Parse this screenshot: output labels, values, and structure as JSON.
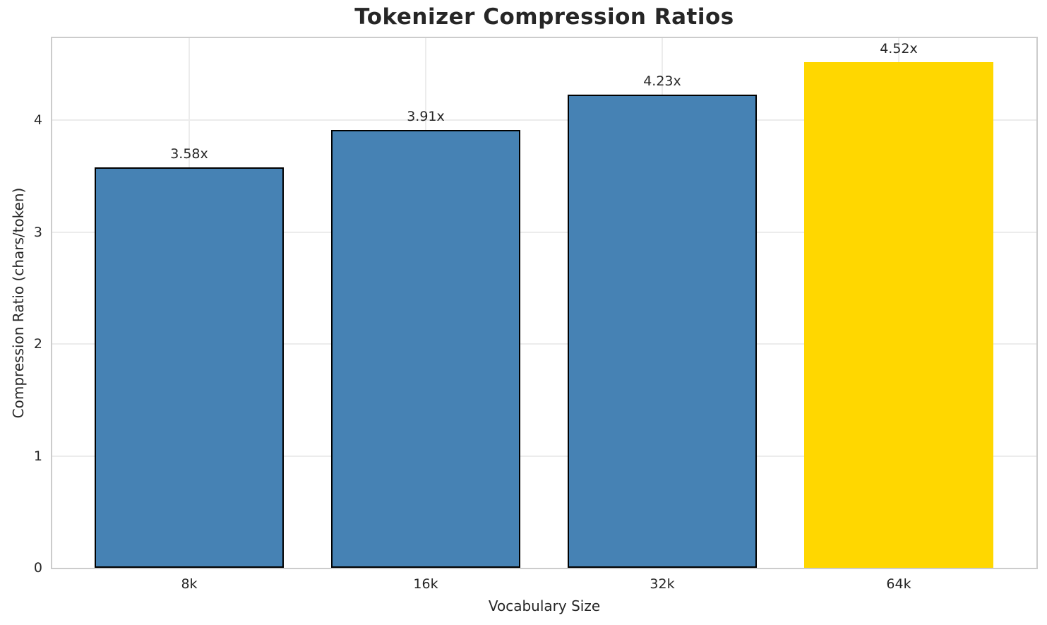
{
  "chart_data": {
    "type": "bar",
    "title": "Tokenizer Compression Ratios",
    "xlabel": "Vocabulary Size",
    "ylabel": "Compression Ratio (chars/token)",
    "categories": [
      "8k",
      "16k",
      "32k",
      "64k"
    ],
    "values": [
      3.58,
      3.91,
      4.23,
      4.52
    ],
    "bar_labels": [
      "3.58x",
      "3.91x",
      "4.23x",
      "4.52x"
    ],
    "yticks": [
      0,
      1,
      2,
      3,
      4
    ],
    "ylim": [
      0,
      4.75
    ],
    "grid": true,
    "legend": "none",
    "highlight_index": 3,
    "colors": {
      "bar_default": "#4682B4",
      "bar_highlight": "#FFD700",
      "bar_edge": "#000000",
      "grid": "#ececec",
      "spine": "#cccccc",
      "text": "#262626",
      "background": "#ffffff"
    }
  }
}
